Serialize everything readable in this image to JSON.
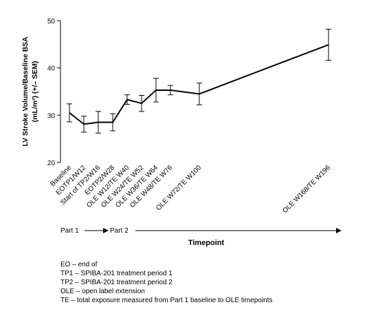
{
  "chart_data": {
    "type": "line",
    "ylabel": [
      "LV Stroke Volume/Baseline BSA",
      "(mL/m²) (+/– SEM)"
    ],
    "categories": [
      "Baseline",
      "EOTP1/W12",
      "Start of TP2/W16",
      "EOTP2/W28",
      "OLE W12/TE W40",
      "OLE W24/TE W52",
      "OLE W36/TE W64",
      "OLE W48/TE W76",
      "OLE W72/TE W100",
      "OLE W168/TE W196"
    ],
    "series": [
      {
        "color": "#000000",
        "values": [
          30.5,
          28.1,
          28.5,
          28.5,
          33.3,
          32.5,
          35.3,
          35.3,
          34.5,
          44.9
        ],
        "errors": [
          1.9,
          1.7,
          2.3,
          1.8,
          1.0,
          1.7,
          2.5,
          1.0,
          2.3,
          3.3
        ]
      }
    ],
    "ylim": [
      20,
      50
    ],
    "yticks": [
      20,
      30,
      40,
      50
    ],
    "parts": [
      "Part 1",
      "Part 2"
    ],
    "xlabel": "Timepoint",
    "footnotes": [
      "EO – end of",
      "TP1 – SPIBA-201 treatment period 1",
      "TP2 – SPIBA-201 treatment period 2",
      "OLE – open label extension",
      "TE – total exposure measured from Part 1 baseline to OLE timepoints"
    ]
  }
}
